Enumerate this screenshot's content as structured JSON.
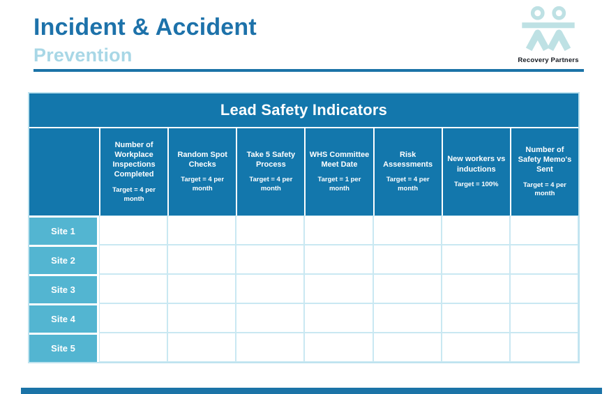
{
  "header": {
    "title": "Incident & Accident",
    "subtitle": "Prevention",
    "brand": "Recovery Partners"
  },
  "table": {
    "title": "Lead Safety Indicators",
    "columns": [
      {
        "label": "Number of Workplace Inspections Completed",
        "target": "Target = 4 per month"
      },
      {
        "label": "Random Spot Checks",
        "target": "Target = 4 per month"
      },
      {
        "label": "Take 5 Safety Process",
        "target": "Target = 4 per month"
      },
      {
        "label": "WHS Committee Meet Date",
        "target": "Target = 1 per month"
      },
      {
        "label": "Risk Assessments",
        "target": "Target = 4 per month"
      },
      {
        "label": "New workers vs inductions",
        "target": "Target = 100%"
      },
      {
        "label": "Number of Safety Memo's Sent",
        "target": "Target = 4 per month"
      }
    ],
    "rows": [
      {
        "label": "Site 1",
        "values": [
          "",
          "",
          "",
          "",
          "",
          "",
          ""
        ]
      },
      {
        "label": "Site 2",
        "values": [
          "",
          "",
          "",
          "",
          "",
          "",
          ""
        ]
      },
      {
        "label": "Site 3",
        "values": [
          "",
          "",
          "",
          "",
          "",
          "",
          ""
        ]
      },
      {
        "label": "Site 4",
        "values": [
          "",
          "",
          "",
          "",
          "",
          "",
          ""
        ]
      },
      {
        "label": "Site 5",
        "values": [
          "",
          "",
          "",
          "",
          "",
          "",
          ""
        ]
      }
    ]
  },
  "colors": {
    "header_blue": "#1377AC",
    "site_teal": "#53B5D1",
    "title_blue": "#1D72AA",
    "subtitle_blue": "#A8D7E6",
    "rule_blue": "#1B73A7",
    "table_border": "#BFE3EF",
    "cell_line": "#C9E8F2",
    "logo_pale": "#BEE1E4",
    "brand_text": "#14181F"
  }
}
